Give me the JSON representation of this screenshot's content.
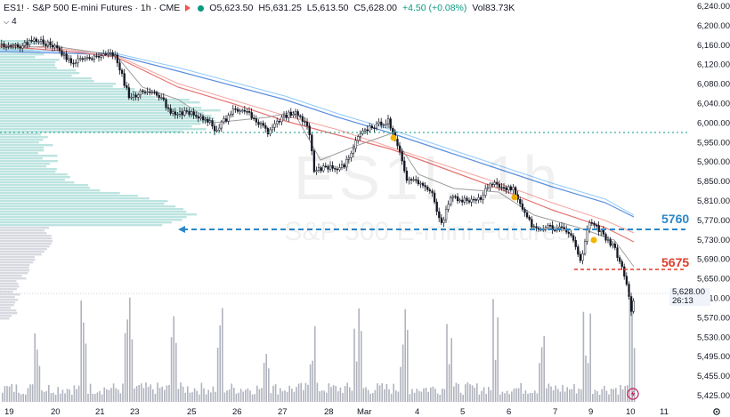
{
  "legend": {
    "symbol": "ES1!",
    "separator1": "·",
    "name": "S&P 500 E-mini Futures",
    "separator2": "·",
    "interval": "1h",
    "separator3": "·",
    "exchange": "CME",
    "open_label": "O",
    "open": "5,623.50",
    "high_label": "H",
    "high": "5,631.25",
    "low_label": "L",
    "low": "5,613.50",
    "close_label": "C",
    "close": "5,628.00",
    "change": "+4.50 (+0.08%)",
    "vol_label": "Vol",
    "volume": "83.73K"
  },
  "indicators": {
    "count": "4"
  },
  "watermark": {
    "symbol": "ES1!, 1h",
    "name": "S&P 500 E-mini Futures"
  },
  "price_axis": {
    "labels": [
      "6,240.00",
      "6,200.00",
      "6,160.00",
      "6,120.00",
      "6,080.00",
      "6,040.00",
      "6,000.00",
      "5,950.00",
      "5,900.00",
      "5,850.00",
      "5,810.00",
      "5,770.00",
      "5,730.00",
      "5,690.00",
      "5,650.00",
      "5,610.00",
      "5,570.00",
      "5,530.00",
      "5,495.00",
      "5,455.00",
      "5,425.00"
    ]
  },
  "last_price": {
    "price": "5,628.00",
    "countdown": "26:13"
  },
  "time_axis": {
    "labels": [
      "19",
      "20",
      "21",
      "23",
      "25",
      "26",
      "27",
      "28",
      "Mar",
      "4",
      "5",
      "6",
      "7",
      "9",
      "10",
      "11"
    ]
  },
  "levels": [
    {
      "value": "5760",
      "color": "#2b87c8"
    },
    {
      "value": "5675",
      "color": "#e03c2c"
    }
  ],
  "colors": {
    "up": "#089981",
    "down": "#f23645",
    "profile": "#b2dfdb",
    "ema_blue": "#2962ff",
    "ema_red": "#f44336"
  },
  "icons": {
    "settings": "gear-icon",
    "alert": "lightning-icon"
  }
}
